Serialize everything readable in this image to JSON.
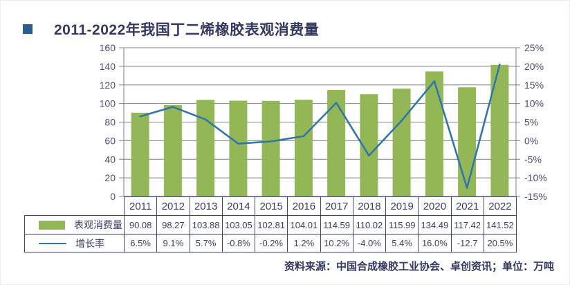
{
  "title": {
    "text": "2011-2022年我国丁二烯橡胶表观消费量"
  },
  "source_note": "资料来源：中国合成橡胶工业协会、卓创资讯；单位：万吨",
  "colors": {
    "bar": "#93b757",
    "line": "#3176a6",
    "grid": "#7a8089",
    "bullet": "#2a5d94",
    "table_border": "#3f4766",
    "text": "#383c66"
  },
  "chart_data": {
    "type": "bar+line",
    "title": "2011-2022年我国丁二烯橡胶表观消费量",
    "unit": "万吨",
    "categories": [
      "2011",
      "2012",
      "2013",
      "2014",
      "2015",
      "2016",
      "2017",
      "2018",
      "2019",
      "2020",
      "2021",
      "2022"
    ],
    "series": [
      {
        "name": "表观消费量",
        "type": "bar",
        "axis": "left",
        "values": [
          90.08,
          98.27,
          103.88,
          103.05,
          102.81,
          104.01,
          114.59,
          110.02,
          115.99,
          134.49,
          117.42,
          141.52
        ]
      },
      {
        "name": "增长率",
        "type": "line",
        "axis": "right",
        "values": [
          6.5,
          9.1,
          5.7,
          -0.8,
          -0.2,
          1.2,
          10.2,
          -4.0,
          5.4,
          16.0,
          -12.7,
          20.5
        ]
      }
    ],
    "left_axis": {
      "min": 0,
      "max": 160,
      "step": 20,
      "tick_labels": [
        "160",
        "140",
        "120",
        "100",
        "80",
        "60",
        "40",
        "20",
        "0"
      ]
    },
    "right_axis": {
      "min": -15,
      "max": 25,
      "step": 5,
      "format": "percent",
      "tick_labels": [
        "25%",
        "20%",
        "15%",
        "10%",
        "5%",
        "0%",
        "-5%",
        "-10%",
        "-15%"
      ]
    },
    "grid": true,
    "legend_position": "table-left-column"
  },
  "table": {
    "row1_label": "表观消费量",
    "row2_label": "增长率",
    "row1_values": [
      "90.08",
      "98.27",
      "103.88",
      "103.05",
      "102.81",
      "104.01",
      "114.59",
      "110.02",
      "115.99",
      "134.49",
      "117.42",
      "141.52"
    ],
    "row2_values": [
      "6.5%",
      "9.1%",
      "5.7%",
      "-0.8%",
      "-0.2%",
      "1.2%",
      "10.2%",
      "-4.0%",
      "5.4%",
      "16.0%",
      "-12.7",
      "20.5%"
    ]
  }
}
